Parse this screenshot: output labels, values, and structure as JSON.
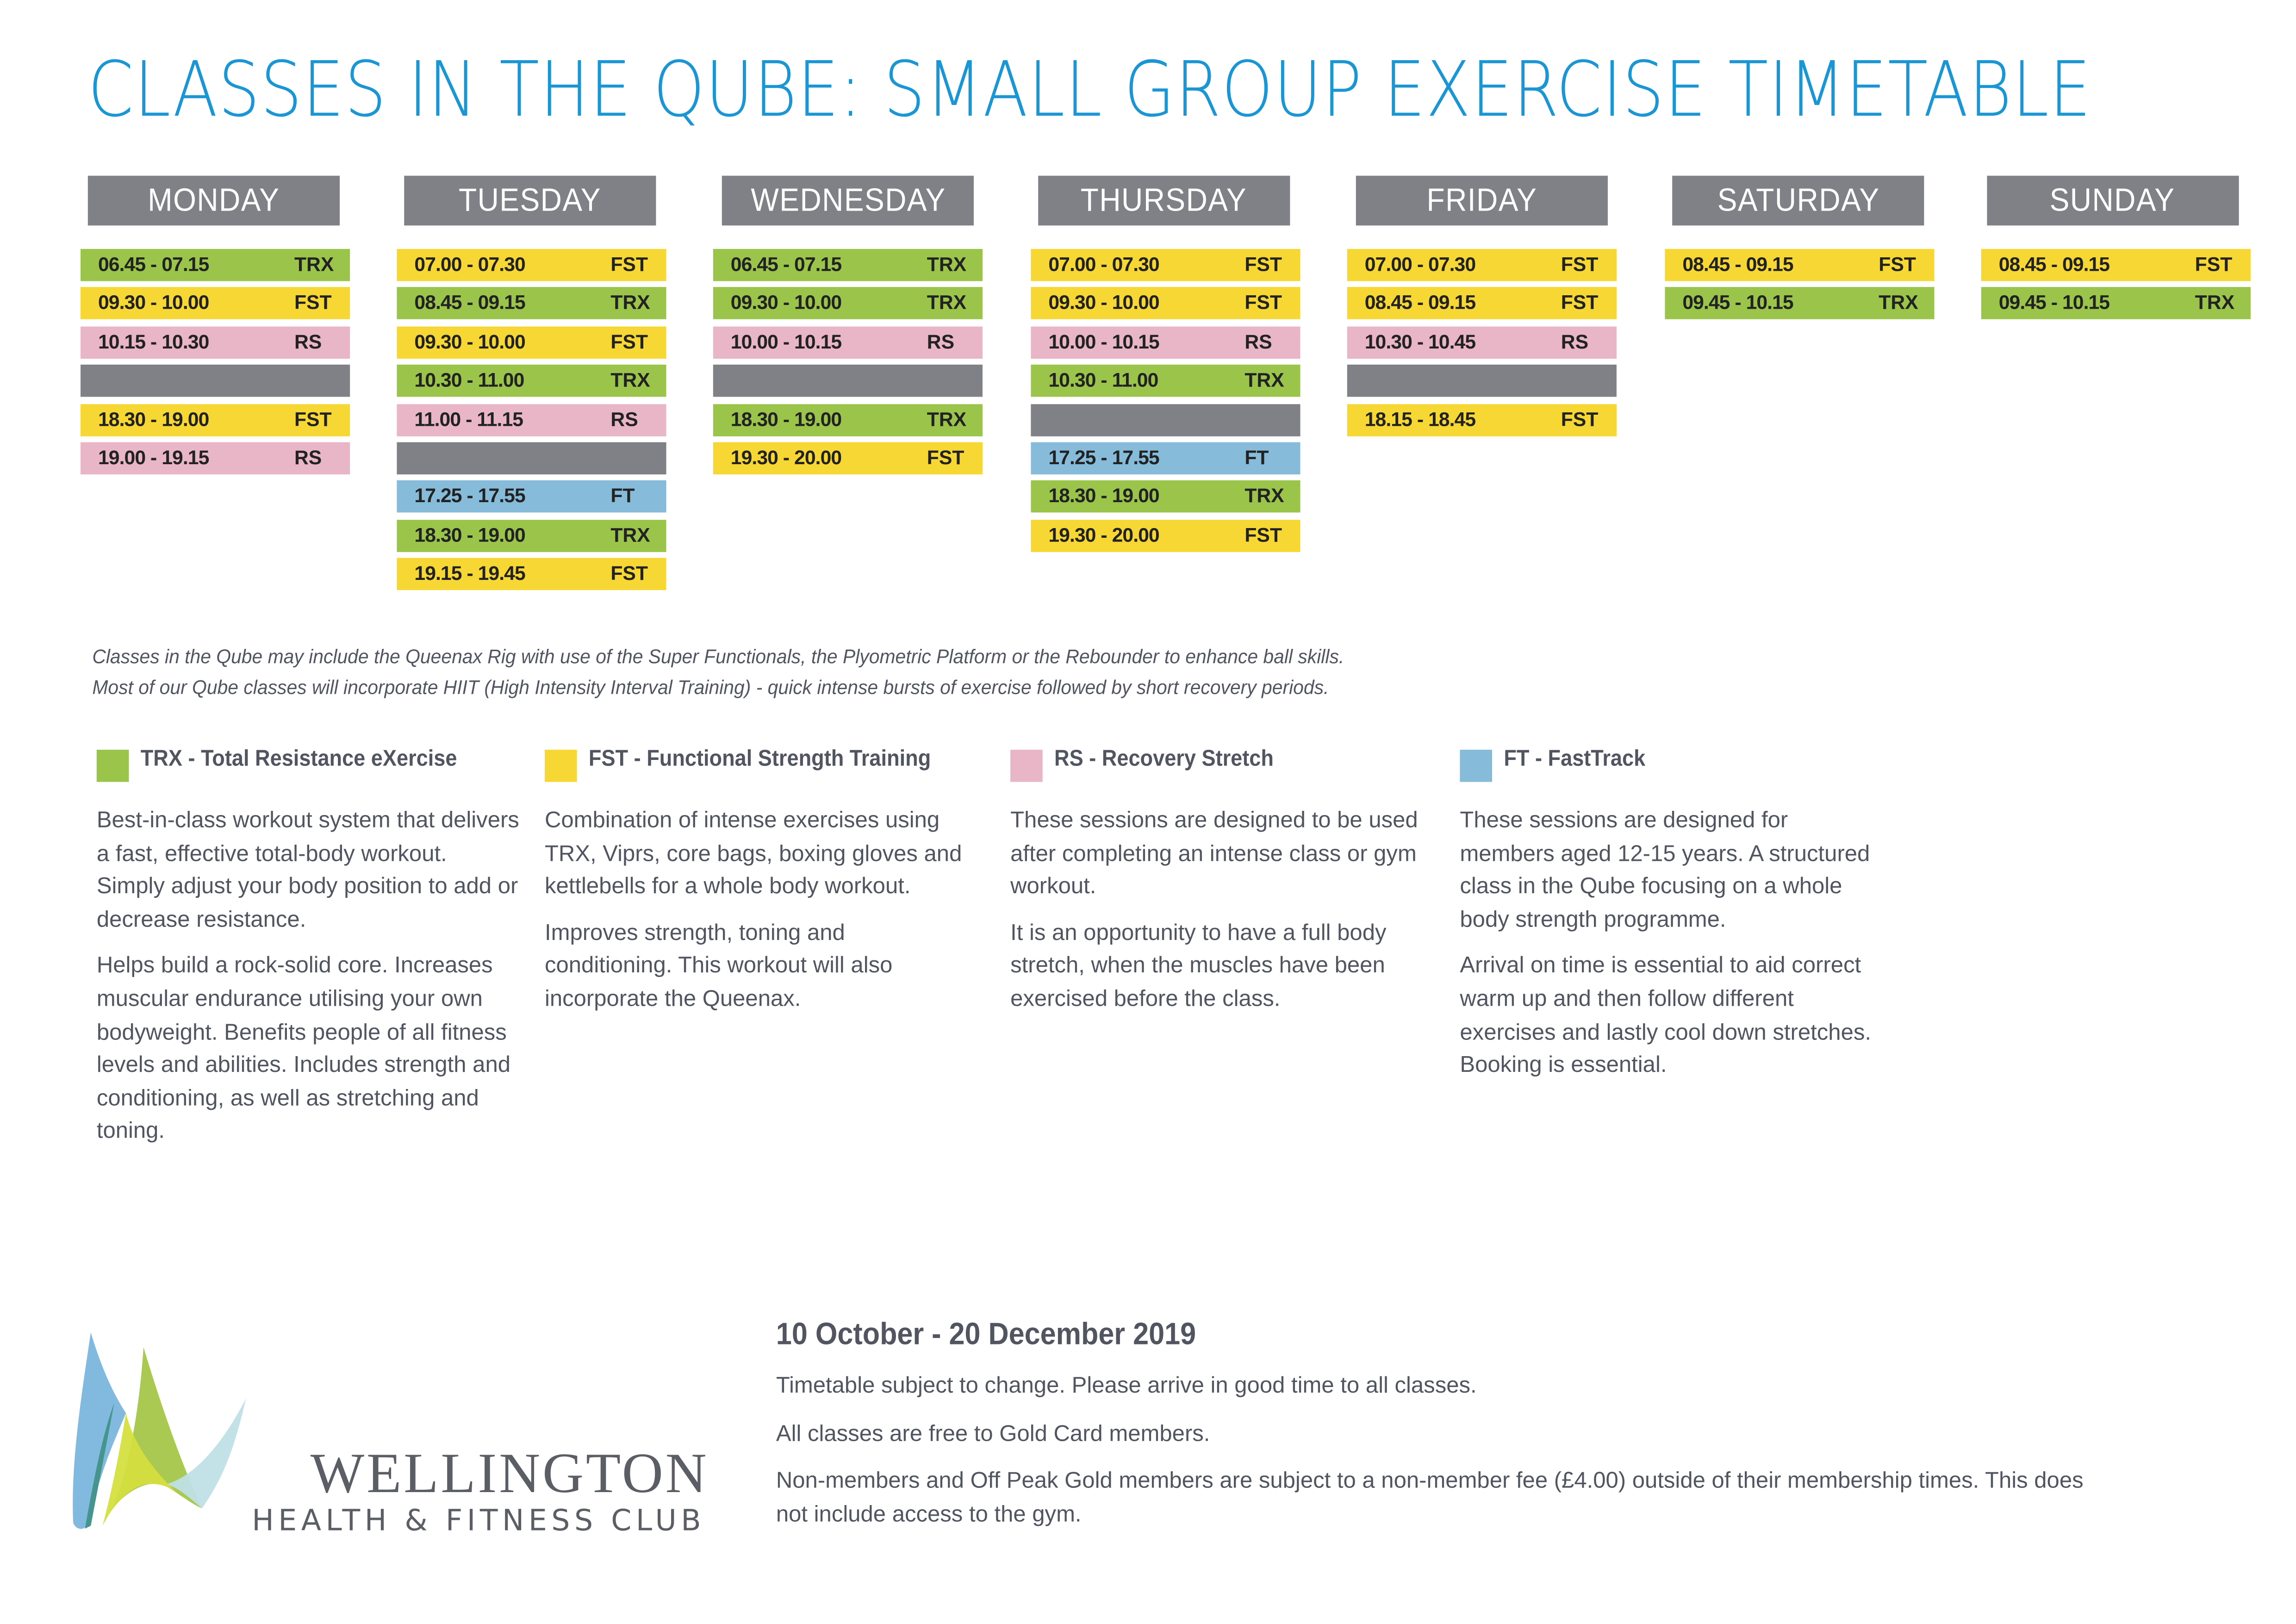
{
  "page": {
    "title": "CLASSES IN THE QUBE: SMALL GROUP EXERCISE TIMETABLE"
  },
  "colors": {
    "title": "#1a96d4",
    "header_grey": "#808186",
    "TRX": "#9bc54a",
    "FST": "#f7d733",
    "RS": "#e8b6c6",
    "FT": "#86bcd9",
    "text": "#505560"
  },
  "timetable": {
    "days": [
      {
        "name": "MONDAY",
        "slots": [
          {
            "time": "06.45 - 07.15",
            "code": "TRX"
          },
          {
            "time": "09.30 - 10.00",
            "code": "FST"
          },
          {
            "time": "10.15 - 10.30",
            "code": "RS"
          },
          {
            "time": "",
            "code": "BREAK"
          },
          {
            "time": "18.30 - 19.00",
            "code": "FST"
          },
          {
            "time": "19.00 - 19.15",
            "code": "RS"
          }
        ]
      },
      {
        "name": "TUESDAY",
        "slots": [
          {
            "time": "07.00 - 07.30",
            "code": "FST"
          },
          {
            "time": "08.45 - 09.15",
            "code": "TRX"
          },
          {
            "time": "09.30 - 10.00",
            "code": "FST"
          },
          {
            "time": "10.30 - 11.00",
            "code": "TRX"
          },
          {
            "time": "11.00 - 11.15",
            "code": "RS"
          },
          {
            "time": "",
            "code": "BREAK"
          },
          {
            "time": "17.25 - 17.55",
            "code": "FT"
          },
          {
            "time": "18.30 - 19.00",
            "code": "TRX"
          },
          {
            "time": "19.15 - 19.45",
            "code": "FST"
          }
        ]
      },
      {
        "name": "WEDNESDAY",
        "slots": [
          {
            "time": "06.45 - 07.15",
            "code": "TRX"
          },
          {
            "time": "09.30 - 10.00",
            "code": "TRX"
          },
          {
            "time": "10.00 - 10.15",
            "code": "RS"
          },
          {
            "time": "",
            "code": "BREAK"
          },
          {
            "time": "18.30 - 19.00",
            "code": "TRX"
          },
          {
            "time": "19.30 - 20.00",
            "code": "FST"
          }
        ]
      },
      {
        "name": "THURSDAY",
        "slots": [
          {
            "time": "07.00 - 07.30",
            "code": "FST"
          },
          {
            "time": "09.30 - 10.00",
            "code": "FST"
          },
          {
            "time": "10.00 - 10.15",
            "code": "RS"
          },
          {
            "time": "10.30 - 11.00",
            "code": "TRX"
          },
          {
            "time": "",
            "code": "BREAK"
          },
          {
            "time": "17.25 - 17.55",
            "code": "FT"
          },
          {
            "time": "18.30 - 19.00",
            "code": "TRX"
          },
          {
            "time": "19.30 - 20.00",
            "code": "FST"
          }
        ]
      },
      {
        "name": "FRIDAY",
        "slots": [
          {
            "time": "07.00 - 07.30",
            "code": "FST"
          },
          {
            "time": "08.45 - 09.15",
            "code": "FST"
          },
          {
            "time": "10.30 - 10.45",
            "code": "RS"
          },
          {
            "time": "",
            "code": "BREAK"
          },
          {
            "time": "18.15 - 18.45",
            "code": "FST"
          }
        ]
      },
      {
        "name": "SATURDAY",
        "slots": [
          {
            "time": "08.45 - 09.15",
            "code": "FST"
          },
          {
            "time": "09.45 - 10.15",
            "code": "TRX"
          }
        ]
      },
      {
        "name": "SUNDAY",
        "slots": [
          {
            "time": "08.45 - 09.15",
            "code": "FST"
          },
          {
            "time": "09.45 - 10.15",
            "code": "TRX"
          }
        ]
      }
    ]
  },
  "notes": [
    "Classes in the Qube may include the Queenax Rig with use of the Super Functionals, the Plyometric Platform or the Rebounder to enhance ball skills.",
    "Most of our Qube classes will incorporate HIIT (High Intensity Interval Training) - quick intense bursts of exercise followed by short recovery periods."
  ],
  "legend": [
    {
      "code": "TRX",
      "title": "TRX - Total Resistance eXercise",
      "paragraphs": [
        "Best-in-class workout system that delivers a fast, effective total-body workout. Simply adjust your body position to add or decrease resistance.",
        "Helps build a rock-solid core. Increases muscular endurance utilising your own bodyweight. Benefits people of all fitness levels and abilities. Includes strength and conditioning, as well as stretching and toning."
      ]
    },
    {
      "code": "FST",
      "title": "FST - Functional Strength Training",
      "paragraphs": [
        "Combination of intense exercises using TRX, Viprs, core bags, boxing gloves and kettlebells for a whole body workout.",
        "Improves strength, toning and conditioning. This workout will also incorporate the Queenax."
      ]
    },
    {
      "code": "RS",
      "title": "RS - Recovery Stretch",
      "paragraphs": [
        "These sessions are designed to be used after completing an intense class or gym workout.",
        "It is an opportunity to have a full body stretch, when the muscles have been exercised before the class."
      ]
    },
    {
      "code": "FT",
      "title": "FT - FastTrack",
      "paragraphs": [
        "These sessions are designed for members aged 12-15 years. A structured class in the Qube focusing on a whole body strength programme.",
        "Arrival on time is essential to aid correct warm up and then follow different exercises and lastly cool down stretches. Booking is essential."
      ]
    }
  ],
  "footer": {
    "date_range": "10 October - 20 December 2019",
    "lines": [
      "Timetable subject to change. Please arrive in good time to all classes.",
      "All classes are free to Gold Card members.",
      "Non-members and Off Peak Gold members are subject to a non-member fee (£4.00) outside of their membership times. This does not include access to the gym."
    ]
  },
  "logo": {
    "icon": "sail-leaves-logo-icon",
    "name_line1": "WELLINGTON",
    "name_line2": "HEALTH & FITNESS CLUB"
  }
}
